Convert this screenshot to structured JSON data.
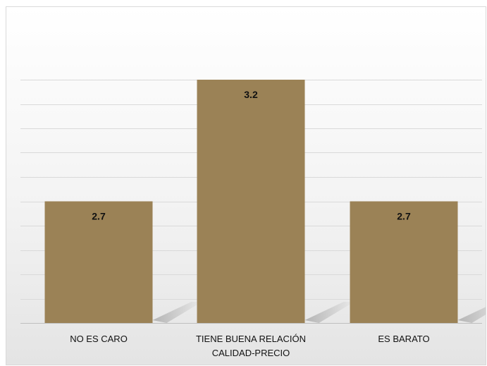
{
  "chart_data": {
    "type": "bar",
    "categories": [
      "NO ES CARO",
      "TIENE BUENA RELACIÓN CALIDAD-PRECIO",
      "ES BARATO"
    ],
    "category_lines": [
      [
        "NO ES CARO"
      ],
      [
        "TIENE BUENA RELACIÓN",
        "CALIDAD-PRECIO"
      ],
      [
        "ES BARATO"
      ]
    ],
    "values": [
      2.7,
      3.2,
      2.7
    ],
    "value_labels": [
      "2.7",
      "3.2",
      "2.7"
    ],
    "ylim": [
      2.2,
      3.3
    ],
    "grid": true,
    "legend": "none",
    "colors": {
      "bar": "#9b8256",
      "grid": "#d9d9d9",
      "baseline": "#bfbfbf",
      "label": "#111111"
    }
  }
}
